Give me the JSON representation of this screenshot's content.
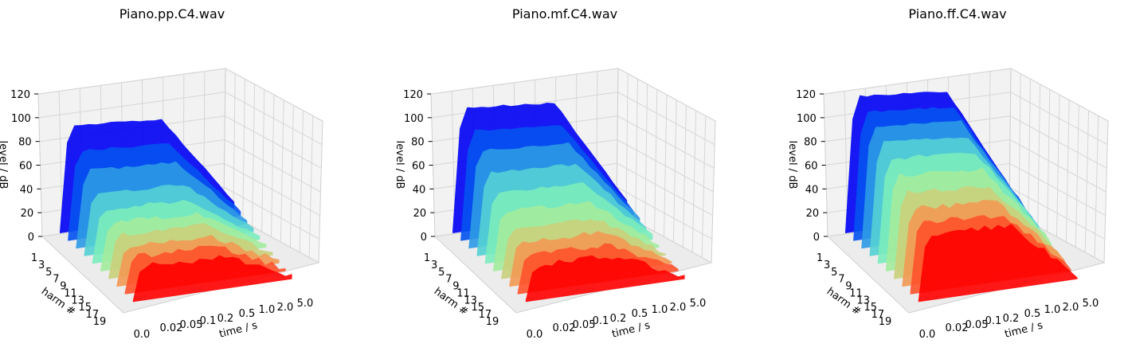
{
  "figure": {
    "shared": {
      "zlabel": "level / dB",
      "ylabel": "harm #",
      "xlabel": "time / s",
      "z_ticks": [
        "0",
        "20",
        "40",
        "60",
        "80",
        "100",
        "120"
      ],
      "harm_ticks": [
        "1",
        "3",
        "5",
        "7",
        "9",
        "11",
        "13",
        "15",
        "17",
        "19"
      ],
      "time_ticks": [
        "0.0",
        "0.02",
        "0.05",
        "0.1",
        "0.2",
        "0.5",
        "1.0",
        "2.0",
        "5.0"
      ]
    }
  },
  "chart_data": [
    {
      "type": "area",
      "title": "Piano.pp.C4.wav",
      "zlabel": "level / dB",
      "ylabel": "harm #",
      "xlabel": "time / s",
      "zlim": [
        0,
        120
      ],
      "grid": true,
      "colormap": "rainbow",
      "time_ticks": [
        0.0,
        0.02,
        0.05,
        0.1,
        0.2,
        0.5,
        1.0,
        2.0,
        5.0
      ],
      "harmonics": [
        1,
        3,
        5,
        7,
        9,
        11,
        13,
        15,
        17,
        19
      ],
      "peak_level_dB": [
        90,
        75,
        65,
        52,
        45,
        40,
        36,
        33,
        31,
        29
      ]
    },
    {
      "type": "area",
      "title": "Piano.mf.C4.wav",
      "zlabel": "level / dB",
      "ylabel": "harm #",
      "xlabel": "time / s",
      "zlim": [
        0,
        120
      ],
      "grid": true,
      "colormap": "rainbow",
      "time_ticks": [
        0.0,
        0.02,
        0.05,
        0.1,
        0.2,
        0.5,
        1.0,
        2.0,
        5.0
      ],
      "harmonics": [
        1,
        3,
        5,
        7,
        9,
        11,
        13,
        15,
        17,
        19
      ],
      "peak_level_dB": [
        105,
        92,
        82,
        70,
        60,
        50,
        42,
        37,
        33,
        30
      ]
    },
    {
      "type": "area",
      "title": "Piano.ff.C4.wav",
      "zlabel": "level / dB",
      "ylabel": "harm #",
      "xlabel": "time / s",
      "zlim": [
        0,
        120
      ],
      "grid": true,
      "colormap": "rainbow",
      "time_ticks": [
        0.0,
        0.02,
        0.05,
        0.1,
        0.2,
        0.5,
        1.0,
        2.0,
        5.0
      ],
      "harmonics": [
        1,
        3,
        5,
        7,
        9,
        11,
        13,
        15,
        17,
        19
      ],
      "peak_level_dB": [
        115,
        108,
        102,
        95,
        88,
        80,
        72,
        65,
        60,
        57
      ]
    }
  ]
}
